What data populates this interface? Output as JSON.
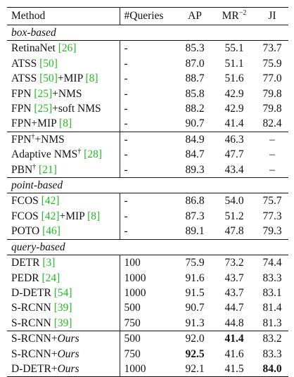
{
  "columns": {
    "method": "Method",
    "queries": "#Queries",
    "ap": "AP",
    "mr": "MR",
    "mr_sup": "−2",
    "ji": "JI"
  },
  "sections": {
    "box": "box-based",
    "point": "point-based",
    "query": "query-based"
  },
  "rows": [
    {
      "pre": "RetinaNet ",
      "cite": "[26]",
      "post": "",
      "queries": "-",
      "ap": "85.3",
      "mr": "55.1",
      "ji": "73.7"
    },
    {
      "pre": "ATSS ",
      "cite": "[50]",
      "post": "",
      "queries": "-",
      "ap": "87.0",
      "mr": "51.1",
      "ji": "75.9"
    },
    {
      "pre": "ATSS ",
      "cite": "[50]",
      "post": "+MIP ",
      "cite2": "[8]",
      "queries": "-",
      "ap": "88.7",
      "mr": "51.6",
      "ji": "77.0"
    },
    {
      "pre": "FPN ",
      "cite": "[25]",
      "post": "+NMS",
      "queries": "-",
      "ap": "85.8",
      "mr": "42.9",
      "ji": "79.8"
    },
    {
      "pre": "FPN ",
      "cite": "[25]",
      "post": "+soft NMS",
      "queries": "-",
      "ap": "88.2",
      "mr": "42.9",
      "ji": "79.8"
    },
    {
      "pre": "FPN+MIP ",
      "cite": "[8]",
      "post": "",
      "queries": "-",
      "ap": "90.7",
      "mr": "41.4",
      "ji": "82.4"
    },
    {
      "pre": "FPN",
      "sup": "†",
      "post": "+NMS",
      "queries": "-",
      "ap": "84.9",
      "mr": "46.3",
      "ji": "–"
    },
    {
      "pre": "Adaptive NMS",
      "sup": "†",
      "post": " ",
      "cite": "[28]",
      "queries": "-",
      "ap": "84.7",
      "mr": "47.7",
      "ji": "–"
    },
    {
      "pre": "PBN",
      "sup": "†",
      "post": " ",
      "cite": "[21]",
      "queries": "-",
      "ap": "89.3",
      "mr": "43.4",
      "ji": "–"
    },
    {
      "pre": "FCOS ",
      "cite": "[42]",
      "post": "",
      "queries": "-",
      "ap": "86.8",
      "mr": "54.0",
      "ji": "75.7"
    },
    {
      "pre": "FCOS ",
      "cite": "[42]",
      "post": "+MIP ",
      "cite2": "[8]",
      "queries": "-",
      "ap": "87.3",
      "mr": "51.2",
      "ji": "77.3"
    },
    {
      "pre": "POTO ",
      "cite": "[46]",
      "post": "",
      "queries": "-",
      "ap": "89.1",
      "mr": "47.8",
      "ji": "79.3"
    },
    {
      "pre": "DETR ",
      "cite": "[3]",
      "post": "",
      "queries": "100",
      "ap": "75.9",
      "mr": "73.2",
      "ji": "74.4"
    },
    {
      "pre": "PEDR ",
      "cite": "[24]",
      "post": "",
      "queries": "1000",
      "ap": "91.6",
      "mr": "43.7",
      "ji": "83.3"
    },
    {
      "pre": "D-DETR ",
      "cite": "[54]",
      "post": "",
      "queries": "1000",
      "ap": "91.5",
      "mr": "43.7",
      "ji": "83.1"
    },
    {
      "pre": "S-RCNN ",
      "cite": "[39]",
      "post": "",
      "queries": "500",
      "ap": "90.7",
      "mr": "44.7",
      "ji": "81.4"
    },
    {
      "pre": "S-RCNN ",
      "cite": "[39]",
      "post": "",
      "queries": "750",
      "ap": "91.3",
      "mr": "44.8",
      "ji": "81.3"
    },
    {
      "pre": "S-RCNN+",
      "ours": "Ours",
      "queries": "500",
      "ap": "92.0",
      "mr": "41.4",
      "ji": "83.2"
    },
    {
      "pre": "S-RCNN+",
      "ours": "Ours",
      "queries": "750",
      "ap": "92.5",
      "mr": "41.6",
      "ji": "83.3"
    },
    {
      "pre": "D-DETR+",
      "ours": "Ours",
      "queries": "1000",
      "ap": "92.1",
      "mr": "41.5",
      "ji": "84.0"
    }
  ],
  "colors": {
    "cite": "#22b922",
    "rule": "#111111"
  }
}
